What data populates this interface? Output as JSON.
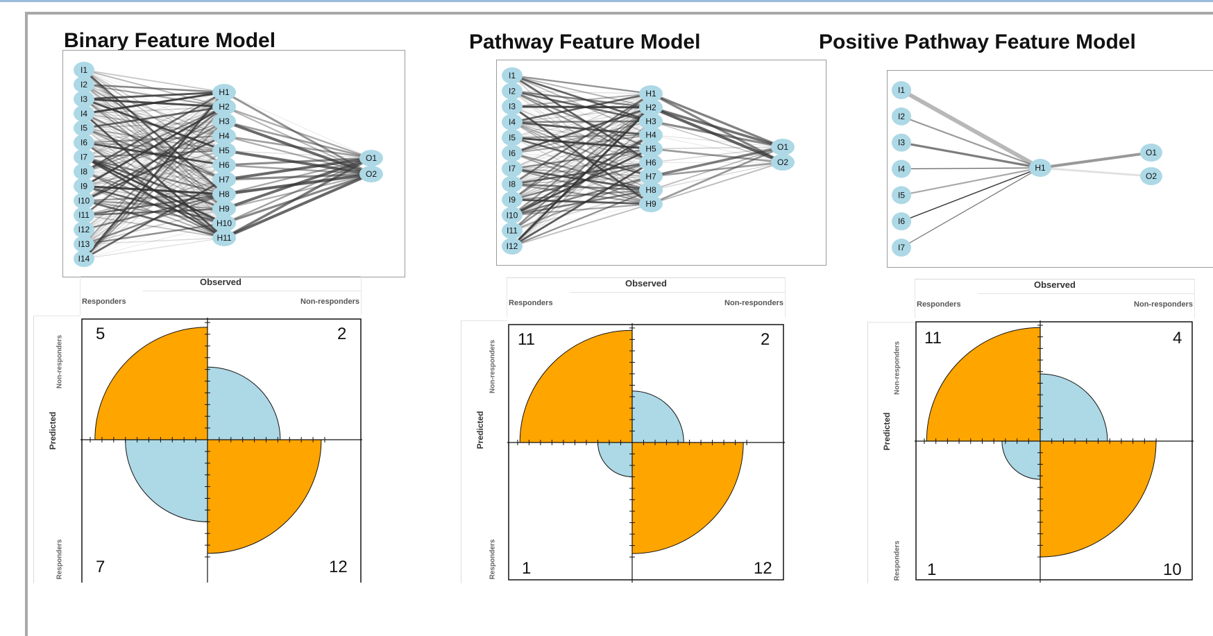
{
  "colors": {
    "node_fill": "#add8e6",
    "edge": "#333333",
    "orange": "#ffa500",
    "blue": "#add8e6",
    "frame": "#a8a8a8",
    "topline": "#9bbbd8"
  },
  "labels": {
    "observed": "Observed",
    "predicted": "Predicted",
    "responders": "Responders",
    "non_responders": "Non-responders"
  },
  "panels": [
    {
      "title": "Binary Feature Model",
      "network": {
        "inputs": [
          "I1",
          "I2",
          "I3",
          "I4",
          "I5",
          "I6",
          "I7",
          "I8",
          "I9",
          "I10",
          "I11",
          "I12",
          "I13",
          "I14"
        ],
        "hidden": [
          "H1",
          "H2",
          "H3",
          "H4",
          "H5",
          "H6",
          "H7",
          "H8",
          "H9",
          "H10",
          "H11"
        ],
        "outputs": [
          "O1",
          "O2"
        ]
      },
      "counts": {
        "top_left": "5",
        "top_right": "2",
        "bottom_left": "7",
        "bottom_right": "12"
      }
    },
    {
      "title": "Pathway Feature Model",
      "network": {
        "inputs": [
          "I1",
          "I2",
          "I3",
          "I4",
          "I5",
          "I6",
          "I7",
          "I8",
          "I9",
          "I10",
          "I11",
          "I12"
        ],
        "hidden": [
          "H1",
          "H2",
          "H3",
          "H4",
          "H5",
          "H6",
          "H7",
          "H8",
          "H9"
        ],
        "outputs": [
          "O1",
          "O2"
        ]
      },
      "counts": {
        "top_left": "11",
        "top_right": "2",
        "bottom_left": "1",
        "bottom_right": "12"
      }
    },
    {
      "title": "Positive Pathway Feature Model",
      "network": {
        "inputs": [
          "I1",
          "I2",
          "I3",
          "I4",
          "I5",
          "I6",
          "I7"
        ],
        "hidden": [
          "H1"
        ],
        "outputs": [
          "O1",
          "O2"
        ]
      },
      "counts": {
        "top_left": "11",
        "top_right": "4",
        "bottom_left": "1",
        "bottom_right": "10"
      }
    }
  ]
}
